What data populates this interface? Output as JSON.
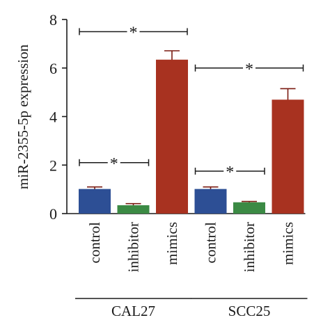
{
  "chart_data": {
    "type": "bar",
    "ylabel": "miR-2355-5p expression",
    "ylim": [
      0,
      8
    ],
    "yticks": [
      "0",
      "2",
      "4",
      "6",
      "8"
    ],
    "categories": [
      "control",
      "inhibitor",
      "mimics",
      "control",
      "inhibitor",
      "mimics"
    ],
    "groups": [
      {
        "name": "CAL27",
        "members": [
          0,
          1,
          2
        ]
      },
      {
        "name": "SCC25",
        "members": [
          3,
          4,
          5
        ]
      }
    ],
    "values": [
      1.0,
      0.33,
      6.33,
      1.0,
      0.45,
      4.68
    ],
    "errors": [
      0.1,
      0.08,
      0.38,
      0.1,
      0.05,
      0.47
    ],
    "colors": [
      "#2d4f95",
      "#3b8a44",
      "#a83220",
      "#2d4f95",
      "#3b8a44",
      "#a83220"
    ],
    "significance": [
      {
        "from": 0,
        "to": 2,
        "y": 7.5,
        "label": "*"
      },
      {
        "from": 0,
        "to": 1,
        "y": 2.1,
        "label": "*"
      },
      {
        "from": 3,
        "to": 5,
        "y": 6.0,
        "label": "*"
      },
      {
        "from": 3,
        "to": 4,
        "y": 1.75,
        "label": "*"
      }
    ],
    "grid": false
  }
}
